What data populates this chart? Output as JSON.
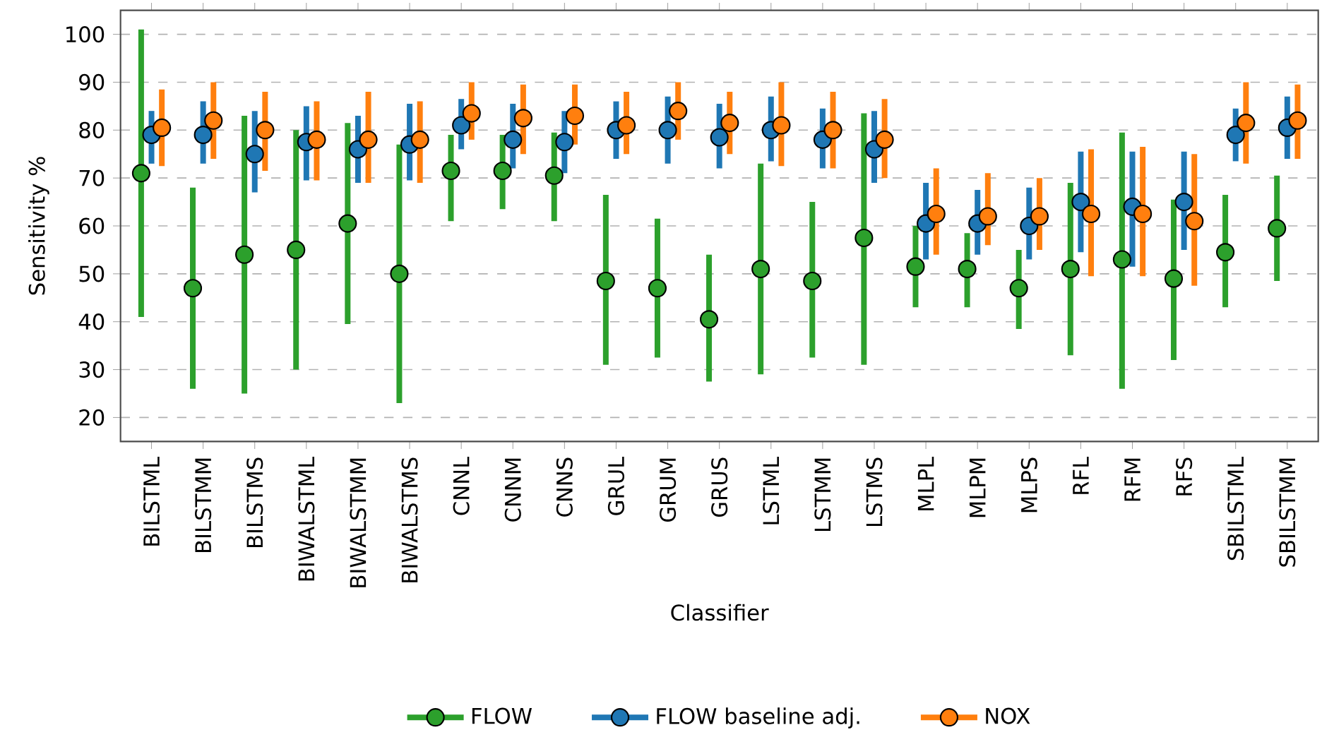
{
  "chart_data": {
    "type": "scatter",
    "xlabel": "Classifier",
    "ylabel": "Sensitivity %",
    "categories": [
      "BILSTML",
      "BILSTMM",
      "BILSTMS",
      "BIWALSTML",
      "BIWALSTMM",
      "BIWALSTMS",
      "CNNL",
      "CNNM",
      "CNNS",
      "GRUL",
      "GRUM",
      "GRUS",
      "LSTML",
      "LSTMM",
      "LSTMS",
      "MLPL",
      "MLPM",
      "MLPS",
      "RFL",
      "RFM",
      "RFS",
      "SBILSTML",
      "SBILSTMM"
    ],
    "series": [
      {
        "name": "FLOW",
        "color": "#2ca02c",
        "values": [
          71,
          47,
          54,
          55,
          60.5,
          50,
          71.5,
          71.5,
          70.5,
          48.5,
          47,
          40.5,
          51,
          48.5,
          57.5,
          51.5,
          51,
          47,
          51,
          53,
          49,
          54.5,
          59.5
        ],
        "errors": [
          [
            41,
            101
          ],
          [
            26,
            68
          ],
          [
            25,
            83
          ],
          [
            30,
            80
          ],
          [
            39.5,
            81.5
          ],
          [
            23,
            77
          ],
          [
            61,
            79
          ],
          [
            63.5,
            79
          ],
          [
            61,
            79.5
          ],
          [
            31,
            66.5
          ],
          [
            32.5,
            61.5
          ],
          [
            27.5,
            54
          ],
          [
            29,
            73
          ],
          [
            32.5,
            65
          ],
          [
            31,
            83.5
          ],
          [
            43,
            60
          ],
          [
            43,
            58.5
          ],
          [
            38.5,
            55
          ],
          [
            33,
            69
          ],
          [
            26,
            79.5
          ],
          [
            32,
            65.5
          ],
          [
            43,
            66.5
          ],
          [
            48.5,
            70.5
          ]
        ]
      },
      {
        "name": "FLOW baseline adj.",
        "color": "#1f77b4",
        "values": [
          79,
          79,
          75,
          77.5,
          76,
          77,
          81,
          78,
          77.5,
          80,
          80,
          78.5,
          80,
          78,
          76,
          60.5,
          60.5,
          60,
          65,
          64,
          65,
          79,
          80.5
        ],
        "errors": [
          [
            73,
            84
          ],
          [
            73,
            86
          ],
          [
            67,
            84
          ],
          [
            69.5,
            85
          ],
          [
            69,
            83
          ],
          [
            69.5,
            85.5
          ],
          [
            76,
            86.5
          ],
          [
            72,
            85.5
          ],
          [
            71,
            84
          ],
          [
            74,
            86
          ],
          [
            73,
            87
          ],
          [
            72,
            85.5
          ],
          [
            73.5,
            87
          ],
          [
            72,
            84.5
          ],
          [
            69,
            84
          ],
          [
            53,
            69
          ],
          [
            54,
            67.5
          ],
          [
            53,
            68
          ],
          [
            54.5,
            75.5
          ],
          [
            51.5,
            75.5
          ],
          [
            55,
            75.5
          ],
          [
            73.5,
            84.5
          ],
          [
            74,
            87
          ]
        ]
      },
      {
        "name": "NOX",
        "color": "#ff7f0e",
        "values": [
          80.5,
          82,
          80,
          78,
          78,
          78,
          83.5,
          82.5,
          83,
          81,
          84,
          81.5,
          81,
          80,
          78,
          62.5,
          62,
          62,
          62.5,
          62.5,
          61,
          81.5,
          82
        ],
        "errors": [
          [
            72.5,
            88.5
          ],
          [
            74,
            90
          ],
          [
            71.5,
            88
          ],
          [
            69.5,
            86
          ],
          [
            69,
            88
          ],
          [
            69,
            86
          ],
          [
            78,
            90
          ],
          [
            75,
            89.5
          ],
          [
            77,
            89.5
          ],
          [
            75,
            88
          ],
          [
            78,
            90
          ],
          [
            75,
            88
          ],
          [
            72.5,
            90
          ],
          [
            72,
            88
          ],
          [
            70,
            86.5
          ],
          [
            54,
            72
          ],
          [
            56,
            71
          ],
          [
            55,
            70
          ],
          [
            49.5,
            76
          ],
          [
            49.5,
            76.5
          ],
          [
            47.5,
            75
          ],
          [
            73,
            90
          ],
          [
            74,
            89.5
          ]
        ]
      }
    ],
    "ylim": [
      15,
      105
    ],
    "yticks": [
      20,
      30,
      40,
      50,
      60,
      70,
      80,
      90,
      100
    ],
    "grid": "y",
    "legend": "bottom",
    "marker": "circle"
  }
}
